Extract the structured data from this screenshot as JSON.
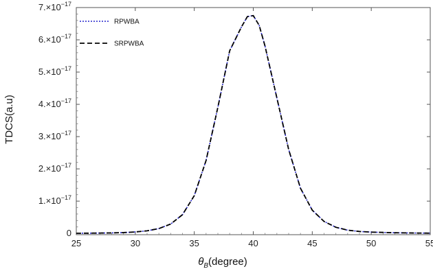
{
  "chart_data": {
    "type": "line",
    "xlabel": {
      "symbol": "θ",
      "subscript": "B",
      "text": "(degree)"
    },
    "ylabel": "TDCS(a.u)",
    "xlim": [
      25,
      55
    ],
    "ylim": [
      -4e-19,
      7e-17
    ],
    "x_ticks": [
      25,
      30,
      35,
      40,
      45,
      50,
      55
    ],
    "y_ticks": [
      {
        "value": 0,
        "mantissa": "0",
        "exp": ""
      },
      {
        "value": 1e-17,
        "mantissa": "1.×10",
        "exp": "−17"
      },
      {
        "value": 2e-17,
        "mantissa": "2.×10",
        "exp": "−17"
      },
      {
        "value": 3e-17,
        "mantissa": "3.×10",
        "exp": "−17"
      },
      {
        "value": 4e-17,
        "mantissa": "4.×10",
        "exp": "−17"
      },
      {
        "value": 5e-17,
        "mantissa": "5.×10",
        "exp": "−17"
      },
      {
        "value": 6e-17,
        "mantissa": "6.×10",
        "exp": "−17"
      },
      {
        "value": 7e-17,
        "mantissa": "7.×10",
        "exp": "−17"
      }
    ],
    "grid": false,
    "legend": {
      "position": "top-left"
    },
    "x": [
      25,
      26,
      27,
      28,
      29,
      30,
      31,
      32,
      33,
      34,
      35,
      36,
      37,
      38,
      39,
      39.5,
      40,
      40.5,
      41,
      42,
      43,
      44,
      45,
      46,
      47,
      48,
      49,
      50,
      51,
      52,
      53,
      54,
      55
    ],
    "series": [
      {
        "name": "RPWBA",
        "color": "#2222cc",
        "dash": "dotted",
        "values": [
          5e-20,
          7e-20,
          1e-19,
          1.5e-19,
          2.5e-19,
          4.5e-19,
          8e-19,
          1.5e-18,
          2.9e-18,
          5.8e-18,
          1.17e-17,
          2.26e-17,
          3.91e-17,
          5.66e-17,
          6.4e-17,
          6.72e-17,
          6.75e-17,
          6.45e-17,
          5.8e-17,
          4.2e-17,
          2.6e-17,
          1.4e-17,
          7.2e-18,
          3.7e-18,
          1.9e-18,
          1e-18,
          6e-19,
          4e-19,
          3e-19,
          2e-19,
          1.5e-19,
          1e-19,
          8e-20
        ]
      },
      {
        "name": "SRPWBA",
        "color": "#000000",
        "dash": "dashed",
        "values": [
          5e-20,
          7e-20,
          1e-19,
          1.5e-19,
          2.5e-19,
          4.5e-19,
          8e-19,
          1.5e-18,
          2.9e-18,
          5.8e-18,
          1.17e-17,
          2.26e-17,
          3.91e-17,
          5.66e-17,
          6.4e-17,
          6.72e-17,
          6.75e-17,
          6.45e-17,
          5.8e-17,
          4.2e-17,
          2.6e-17,
          1.4e-17,
          7.2e-18,
          3.7e-18,
          1.9e-18,
          1e-18,
          6e-19,
          4e-19,
          3e-19,
          2e-19,
          1.5e-19,
          1e-19,
          8e-20
        ]
      }
    ]
  }
}
